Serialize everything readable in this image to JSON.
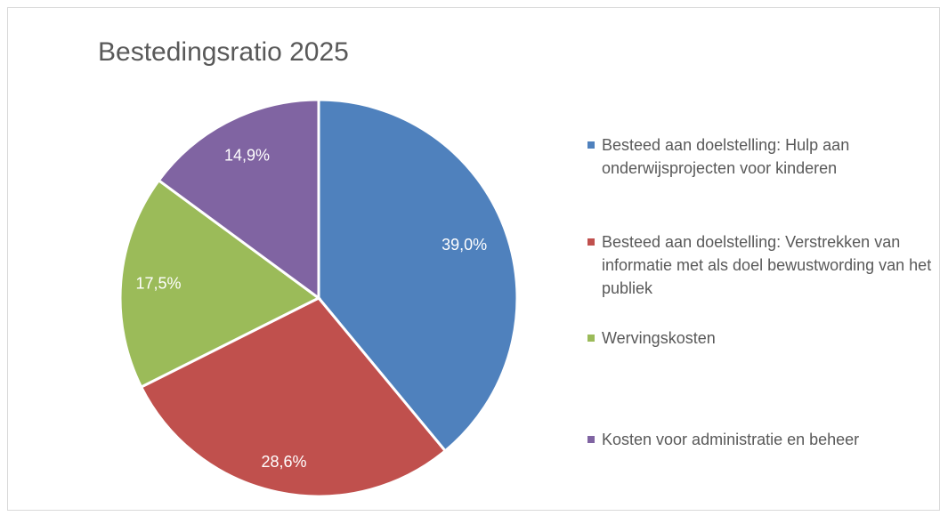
{
  "chart_data": {
    "type": "pie",
    "title": "Bestedingsratio 2025",
    "categories": [
      "Besteed aan doelstelling: Hulp aan onderwijsprojecten voor kinderen",
      "Besteed aan doelstelling: Verstrekken van informatie met als doel bewustwording van het publiek",
      "Wervingskosten",
      "Kosten voor administratie en beheer"
    ],
    "values": [
      39.0,
      28.6,
      17.5,
      14.9
    ],
    "value_labels": [
      "39,0%",
      "28,6%",
      "17,5%",
      "14,9%"
    ],
    "colors": [
      "#4f81bd",
      "#c0504d",
      "#9bbb59",
      "#8064a2"
    ],
    "legend": "right"
  }
}
